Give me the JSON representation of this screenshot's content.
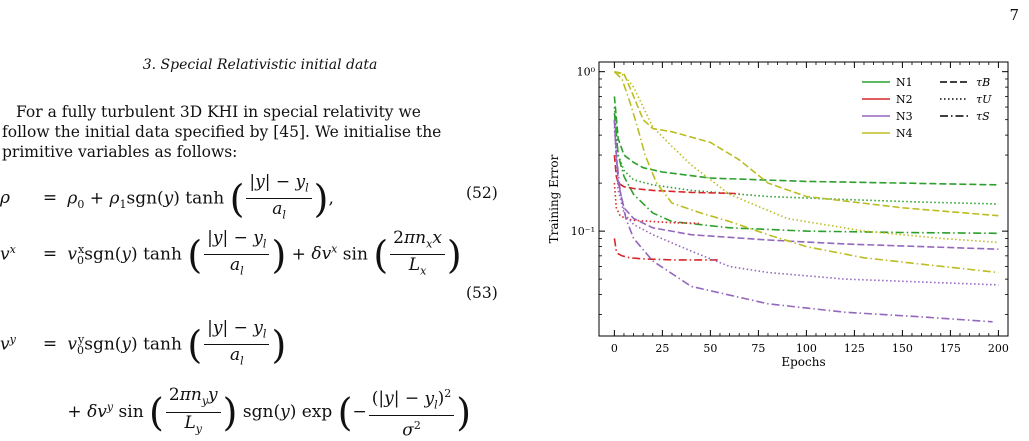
{
  "page": {
    "number": "7"
  },
  "section": {
    "title": "3.   Special Relativistic initial data"
  },
  "paragraph": {
    "line1": "For a fully turbulent 3D KHI in special relativity we",
    "line2": "follow the initial data specified by [45]. We initialise the",
    "line3": "primitive variables as follows:"
  },
  "equations": {
    "eq52_number": "(52)",
    "eq53_number": "(53)"
  },
  "chart_data": {
    "type": "line",
    "xlabel": "Epochs",
    "ylabel": "Training Error",
    "xlim": [
      -8,
      205
    ],
    "ylog": true,
    "ylim": [
      0.022,
      1.15
    ],
    "xticks": [
      0,
      25,
      50,
      75,
      100,
      125,
      150,
      175,
      200
    ],
    "xtick_labels": [
      "0",
      "25",
      "50",
      "75",
      "100",
      "125",
      "150",
      "175",
      "200"
    ],
    "ytick_labels": [
      "10⁻¹",
      "10⁰"
    ],
    "ytick_values": [
      0.1,
      1
    ],
    "legend_placement": "top-right",
    "legend_models": [
      {
        "name": "N1",
        "color": "#2ca02c"
      },
      {
        "name": "N2",
        "color": "#d62728"
      },
      {
        "name": "N3",
        "color": "#9467bd"
      },
      {
        "name": "N4",
        "color": "#bcbd22"
      }
    ],
    "legend_styles": [
      {
        "name": "τB",
        "dash": "dashed"
      },
      {
        "name": "τU",
        "dash": "dotted"
      },
      {
        "name": "τS",
        "dash": "dashdot"
      }
    ],
    "series": [
      {
        "model": "N1",
        "style": "dashed",
        "color": "#2ca02c",
        "x": [
          0,
          2,
          5,
          10,
          15,
          25,
          50,
          100,
          150,
          200
        ],
        "y": [
          0.7,
          0.38,
          0.3,
          0.27,
          0.25,
          0.235,
          0.215,
          0.205,
          0.2,
          0.195
        ]
      },
      {
        "model": "N1",
        "style": "dotted",
        "color": "#2ca02c",
        "x": [
          0,
          2,
          5,
          10,
          20,
          40,
          80,
          120,
          160,
          200
        ],
        "y": [
          0.6,
          0.3,
          0.24,
          0.21,
          0.195,
          0.18,
          0.165,
          0.158,
          0.152,
          0.148
        ]
      },
      {
        "model": "N1",
        "style": "dashdot",
        "color": "#2ca02c",
        "x": [
          0,
          2,
          5,
          10,
          20,
          30,
          60,
          100,
          150,
          200
        ],
        "y": [
          0.55,
          0.3,
          0.22,
          0.17,
          0.13,
          0.115,
          0.105,
          0.1,
          0.098,
          0.097
        ]
      },
      {
        "model": "N2",
        "style": "dashed",
        "color": "#d62728",
        "x": [
          0,
          1,
          2,
          5,
          10,
          20,
          40,
          65
        ],
        "y": [
          0.3,
          0.22,
          0.2,
          0.19,
          0.185,
          0.18,
          0.175,
          0.172
        ]
      },
      {
        "model": "N2",
        "style": "dotted",
        "color": "#d62728",
        "x": [
          0,
          1,
          3,
          6,
          10,
          20,
          30,
          44
        ],
        "y": [
          0.2,
          0.14,
          0.125,
          0.12,
          0.117,
          0.115,
          0.113,
          0.112
        ]
      },
      {
        "model": "N2",
        "style": "dashdot",
        "color": "#d62728",
        "x": [
          0,
          1,
          2,
          4,
          8,
          15,
          30,
          55
        ],
        "y": [
          0.09,
          0.075,
          0.072,
          0.07,
          0.068,
          0.067,
          0.066,
          0.066
        ]
      },
      {
        "model": "N3",
        "style": "dashed",
        "color": "#9467bd",
        "x": [
          0,
          2,
          5,
          10,
          20,
          40,
          80,
          120,
          160,
          200
        ],
        "y": [
          0.5,
          0.2,
          0.14,
          0.12,
          0.105,
          0.095,
          0.088,
          0.083,
          0.08,
          0.077
        ]
      },
      {
        "model": "N3",
        "style": "dotted",
        "color": "#9467bd",
        "x": [
          0,
          2,
          5,
          10,
          20,
          40,
          60,
          80,
          120,
          160,
          200
        ],
        "y": [
          0.45,
          0.18,
          0.13,
          0.11,
          0.095,
          0.075,
          0.06,
          0.055,
          0.05,
          0.048,
          0.046
        ]
      },
      {
        "model": "N3",
        "style": "dashdot",
        "color": "#9467bd",
        "x": [
          0,
          1,
          3,
          6,
          10,
          20,
          40,
          80,
          120,
          160,
          197
        ],
        "y": [
          0.5,
          0.3,
          0.18,
          0.12,
          0.09,
          0.065,
          0.045,
          0.035,
          0.031,
          0.029,
          0.027
        ]
      },
      {
        "model": "N4",
        "style": "dashed",
        "color": "#bcbd22",
        "x": [
          0,
          5,
          10,
          15,
          20,
          30,
          50,
          65,
          80,
          100,
          150,
          200
        ],
        "y": [
          1.0,
          0.97,
          0.7,
          0.5,
          0.44,
          0.42,
          0.36,
          0.28,
          0.2,
          0.165,
          0.14,
          0.125
        ]
      },
      {
        "model": "N4",
        "style": "dotted",
        "color": "#bcbd22",
        "x": [
          0,
          5,
          10,
          15,
          20,
          30,
          40,
          60,
          90,
          130,
          170,
          200
        ],
        "y": [
          1.0,
          0.95,
          0.8,
          0.6,
          0.45,
          0.34,
          0.26,
          0.17,
          0.12,
          0.1,
          0.09,
          0.085
        ]
      },
      {
        "model": "N4",
        "style": "dashdot",
        "color": "#bcbd22",
        "x": [
          0,
          4,
          8,
          12,
          16,
          22,
          30,
          45,
          60,
          80,
          100,
          130,
          160,
          200
        ],
        "y": [
          1.0,
          0.9,
          0.65,
          0.45,
          0.3,
          0.2,
          0.15,
          0.13,
          0.115,
          0.095,
          0.08,
          0.068,
          0.062,
          0.055
        ]
      }
    ]
  }
}
